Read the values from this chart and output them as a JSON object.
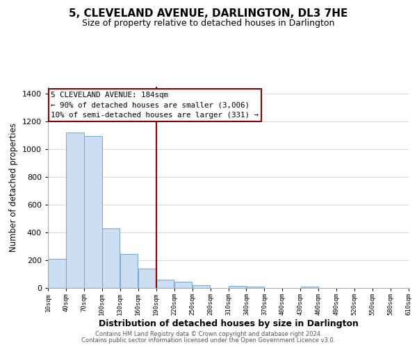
{
  "title": "5, CLEVELAND AVENUE, DARLINGTON, DL3 7HE",
  "subtitle": "Size of property relative to detached houses in Darlington",
  "xlabel": "Distribution of detached houses by size in Darlington",
  "ylabel": "Number of detached properties",
  "bar_color": "#ccdff2",
  "bar_edge_color": "#7aadd4",
  "bins_left": [
    10,
    40,
    70,
    100,
    130,
    160,
    190,
    220,
    250,
    280,
    310,
    340,
    370,
    400,
    430,
    460,
    490,
    520,
    550,
    580
  ],
  "bin_width": 30,
  "bar_heights": [
    210,
    1120,
    1095,
    430,
    243,
    140,
    60,
    45,
    20,
    0,
    15,
    10,
    0,
    0,
    10,
    0,
    0,
    0,
    0,
    0
  ],
  "red_line_x": 190,
  "annotation_title": "5 CLEVELAND AVENUE: 184sqm",
  "annotation_line1": "← 90% of detached houses are smaller (3,006)",
  "annotation_line2": "10% of semi-detached houses are larger (331) →",
  "ylim": [
    0,
    1450
  ],
  "yticks": [
    0,
    200,
    400,
    600,
    800,
    1000,
    1200,
    1400
  ],
  "tick_labels": [
    "10sqm",
    "40sqm",
    "70sqm",
    "100sqm",
    "130sqm",
    "160sqm",
    "190sqm",
    "220sqm",
    "250sqm",
    "280sqm",
    "310sqm",
    "340sqm",
    "370sqm",
    "400sqm",
    "430sqm",
    "460sqm",
    "490sqm",
    "520sqm",
    "550sqm",
    "580sqm",
    "610sqm"
  ],
  "footer_line1": "Contains HM Land Registry data © Crown copyright and database right 2024.",
  "footer_line2": "Contains public sector information licensed under the Open Government Licence v3.0.",
  "background_color": "#ffffff",
  "grid_color": "#d0dce8"
}
